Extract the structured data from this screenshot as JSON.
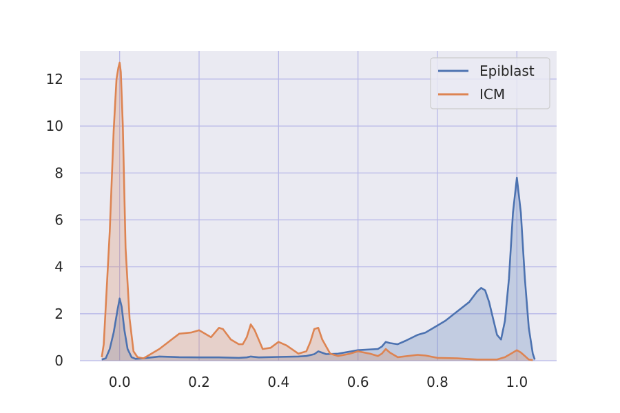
{
  "chart_data": {
    "type": "area",
    "title": "",
    "xlabel": "",
    "ylabel": "",
    "xlim": [
      -0.1,
      1.1
    ],
    "ylim": [
      0,
      13.2
    ],
    "xticks": [
      0.0,
      0.2,
      0.4,
      0.6,
      0.8,
      1.0
    ],
    "xtick_labels": [
      "0.0",
      "0.2",
      "0.4",
      "0.6",
      "0.8",
      "1.0"
    ],
    "yticks": [
      0,
      2,
      4,
      6,
      8,
      10,
      12
    ],
    "ytick_labels": [
      "0",
      "2",
      "4",
      "6",
      "8",
      "10",
      "12"
    ],
    "grid": true,
    "legend_position": "top-right",
    "series": [
      {
        "name": "Epiblast",
        "color": "#4c72b0",
        "x": [
          -0.045,
          -0.035,
          -0.025,
          -0.015,
          -0.005,
          0.0,
          0.005,
          0.012,
          0.02,
          0.03,
          0.04,
          0.06,
          0.1,
          0.15,
          0.2,
          0.25,
          0.3,
          0.32,
          0.33,
          0.35,
          0.4,
          0.45,
          0.47,
          0.49,
          0.5,
          0.52,
          0.55,
          0.6,
          0.65,
          0.66,
          0.67,
          0.68,
          0.7,
          0.72,
          0.75,
          0.77,
          0.8,
          0.82,
          0.85,
          0.88,
          0.9,
          0.91,
          0.92,
          0.93,
          0.94,
          0.95,
          0.96,
          0.97,
          0.98,
          0.99,
          1.0,
          1.01,
          1.02,
          1.03,
          1.04,
          1.045
        ],
        "y": [
          0.05,
          0.1,
          0.5,
          1.2,
          2.2,
          2.65,
          2.3,
          1.3,
          0.5,
          0.15,
          0.08,
          0.1,
          0.18,
          0.15,
          0.14,
          0.14,
          0.12,
          0.14,
          0.18,
          0.14,
          0.16,
          0.18,
          0.2,
          0.28,
          0.4,
          0.28,
          0.3,
          0.45,
          0.5,
          0.6,
          0.8,
          0.75,
          0.7,
          0.85,
          1.1,
          1.2,
          1.5,
          1.7,
          2.1,
          2.5,
          2.95,
          3.1,
          3.0,
          2.5,
          1.8,
          1.1,
          0.9,
          1.7,
          3.5,
          6.3,
          7.8,
          6.3,
          3.5,
          1.4,
          0.3,
          0.05
        ]
      },
      {
        "name": "ICM",
        "color": "#dd8452",
        "x": [
          -0.045,
          -0.04,
          -0.035,
          -0.025,
          -0.015,
          -0.008,
          -0.003,
          0.0,
          0.003,
          0.008,
          0.015,
          0.025,
          0.035,
          0.045,
          0.06,
          0.1,
          0.15,
          0.18,
          0.2,
          0.21,
          0.23,
          0.25,
          0.26,
          0.28,
          0.3,
          0.31,
          0.32,
          0.33,
          0.34,
          0.36,
          0.38,
          0.4,
          0.42,
          0.45,
          0.47,
          0.48,
          0.49,
          0.5,
          0.51,
          0.53,
          0.55,
          0.58,
          0.6,
          0.63,
          0.65,
          0.66,
          0.67,
          0.68,
          0.7,
          0.75,
          0.77,
          0.8,
          0.85,
          0.9,
          0.95,
          0.97,
          0.99,
          1.0,
          1.01,
          1.02,
          1.03,
          1.04
        ],
        "y": [
          0.15,
          0.7,
          2.3,
          5.5,
          9.8,
          12.0,
          12.5,
          12.7,
          12.3,
          10.0,
          4.8,
          1.8,
          0.4,
          0.15,
          0.1,
          0.5,
          1.15,
          1.2,
          1.3,
          1.2,
          1.0,
          1.4,
          1.35,
          0.9,
          0.7,
          0.7,
          1.0,
          1.55,
          1.3,
          0.5,
          0.55,
          0.8,
          0.65,
          0.3,
          0.4,
          0.8,
          1.35,
          1.4,
          0.9,
          0.3,
          0.2,
          0.3,
          0.4,
          0.3,
          0.2,
          0.3,
          0.5,
          0.35,
          0.15,
          0.25,
          0.22,
          0.12,
          0.1,
          0.05,
          0.05,
          0.15,
          0.35,
          0.45,
          0.35,
          0.2,
          0.05,
          0.02
        ]
      }
    ]
  }
}
